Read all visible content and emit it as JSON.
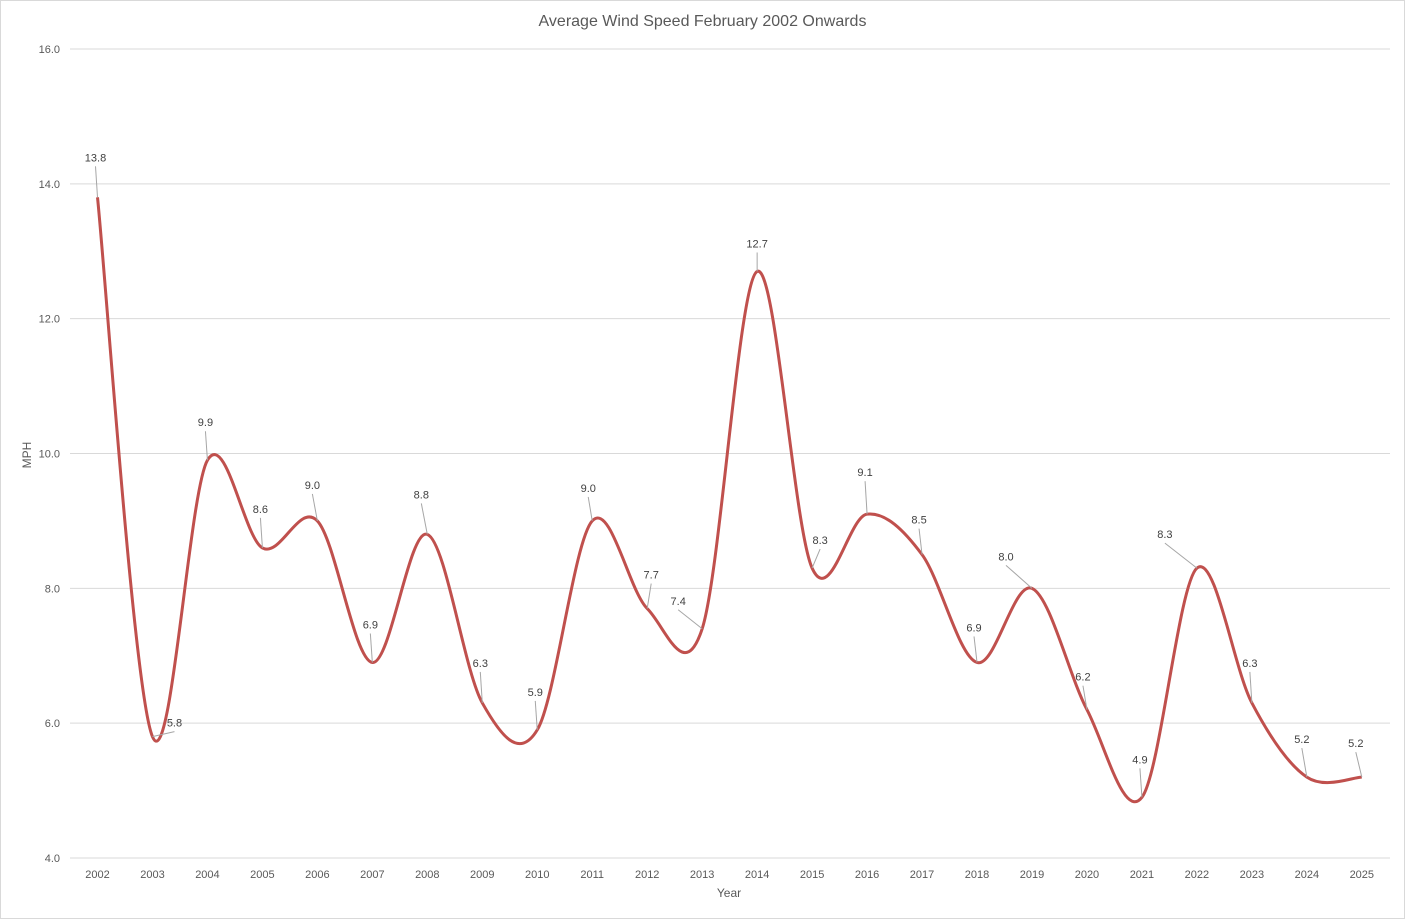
{
  "chart_data": {
    "type": "line",
    "title": "Average Wind Speed February 2002 Onwards",
    "xlabel": "Year",
    "ylabel": "MPH",
    "categories": [
      "2002",
      "2003",
      "2004",
      "2005",
      "2006",
      "2007",
      "2008",
      "2009",
      "2010",
      "2011",
      "2012",
      "2013",
      "2014",
      "2015",
      "2016",
      "2017",
      "2018",
      "2019",
      "2020",
      "2021",
      "2022",
      "2023",
      "2024",
      "2025"
    ],
    "series": [
      {
        "values": [
          13.8,
          5.8,
          9.9,
          8.6,
          9.0,
          6.9,
          8.8,
          6.3,
          5.9,
          9.0,
          7.7,
          7.4,
          12.7,
          8.3,
          9.1,
          8.5,
          6.9,
          8.0,
          6.2,
          4.9,
          8.3,
          6.3,
          5.2,
          5.2
        ],
        "data_labels": [
          "13.8",
          "5.8",
          "9.9",
          "8.6",
          "9.0",
          "6.9",
          "8.8",
          "6.3",
          "5.9",
          "9.0",
          "7.7",
          "7.4",
          "12.7",
          "8.3",
          "9.1",
          "8.5",
          "6.9",
          "8.0",
          "6.2",
          "4.9",
          "8.3",
          "6.3",
          "5.2",
          "5.2"
        ],
        "color": "#c0504d",
        "smooth": true
      }
    ],
    "ylim": [
      4.0,
      16.0
    ],
    "yticks": [
      "4.0",
      "6.0",
      "8.0",
      "10.0",
      "12.0",
      "14.0",
      "16.0"
    ],
    "grid": true,
    "legend": "none"
  },
  "colors": {
    "line": "#c0504d",
    "grid": "#d9d9d9",
    "leader": "#a6a6a6"
  }
}
